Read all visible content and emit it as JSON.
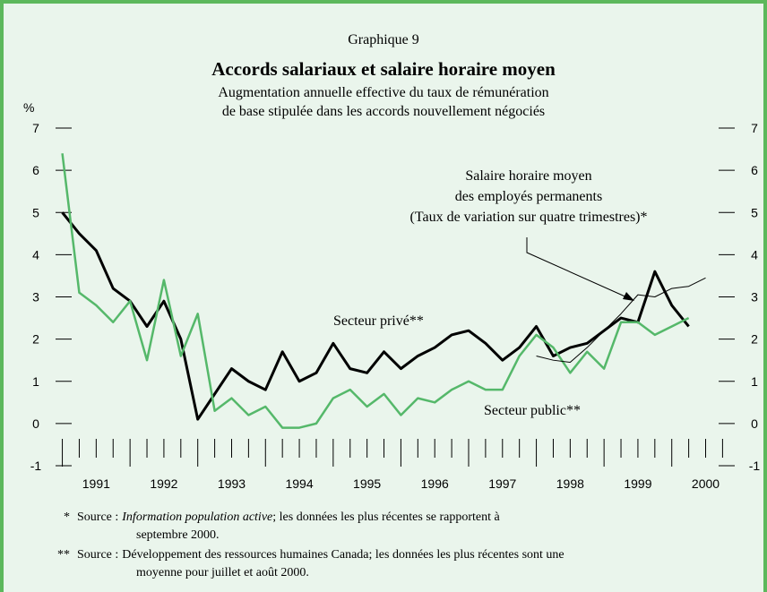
{
  "chart_data": {
    "type": "line",
    "header": "Graphique 9",
    "title": "Accords salariaux et salaire horaire moyen",
    "subtitle": [
      "Augmentation annuelle effective du taux de rémunération",
      "de base stipulée dans les accords nouvellement négociés"
    ],
    "y_label": "%",
    "x": [
      1991,
      1991.25,
      1991.5,
      1991.75,
      1992,
      1992.25,
      1992.5,
      1992.75,
      1993,
      1993.25,
      1993.5,
      1993.75,
      1994,
      1994.25,
      1994.5,
      1994.75,
      1995,
      1995.25,
      1995.5,
      1995.75,
      1996,
      1996.25,
      1996.5,
      1996.75,
      1997,
      1997.25,
      1997.5,
      1997.75,
      1998,
      1998.25,
      1998.5,
      1998.75,
      1999,
      1999.25,
      1999.5,
      1999.75,
      2000,
      2000.25,
      2000.5
    ],
    "series": [
      {
        "name": "Secteur privé**",
        "color": "#000000",
        "width": 3,
        "values": [
          5.0,
          4.5,
          4.1,
          3.2,
          2.9,
          2.3,
          2.9,
          2.0,
          0.1,
          0.7,
          1.3,
          1.0,
          0.8,
          1.7,
          1.0,
          1.2,
          1.9,
          1.3,
          1.2,
          1.7,
          1.3,
          1.6,
          1.8,
          2.1,
          2.2,
          1.9,
          1.5,
          1.8,
          2.3,
          1.6,
          1.8,
          1.9,
          2.2,
          2.5,
          2.4,
          3.6,
          2.8,
          2.3,
          null
        ]
      },
      {
        "name": "Secteur public**",
        "color": "#55b86a",
        "width": 2.5,
        "values": [
          6.4,
          3.1,
          2.8,
          2.4,
          2.9,
          1.5,
          3.4,
          1.6,
          2.6,
          0.3,
          0.6,
          0.2,
          0.4,
          -0.1,
          -0.1,
          0.0,
          0.6,
          0.8,
          0.4,
          0.7,
          0.2,
          0.6,
          0.5,
          0.8,
          1.0,
          0.8,
          0.8,
          1.6,
          2.1,
          1.8,
          1.2,
          1.7,
          1.3,
          2.4,
          2.4,
          2.1,
          2.3,
          2.5,
          null
        ]
      },
      {
        "name": [
          "Salaire horaire moyen",
          "des employés permanents",
          "(Taux de variation sur quatre trimestres)*"
        ],
        "color": "#000000",
        "width": 1,
        "values": [
          null,
          null,
          null,
          null,
          null,
          null,
          null,
          null,
          null,
          null,
          null,
          null,
          null,
          null,
          null,
          null,
          null,
          null,
          null,
          null,
          null,
          null,
          null,
          null,
          null,
          null,
          null,
          null,
          1.6,
          1.5,
          1.45,
          1.8,
          2.2,
          2.6,
          3.05,
          3.0,
          3.2,
          3.25,
          3.45
        ]
      }
    ],
    "xlim": [
      1990.9,
      2000.93
    ],
    "xticks": [
      {
        "value": 1991.5,
        "label": "1991"
      },
      {
        "value": 1992.5,
        "label": "1992"
      },
      {
        "value": 1993.5,
        "label": "1993"
      },
      {
        "value": 1994.5,
        "label": "1994"
      },
      {
        "value": 1995.5,
        "label": "1995"
      },
      {
        "value": 1996.5,
        "label": "1996"
      },
      {
        "value": 1997.5,
        "label": "1997"
      },
      {
        "value": 1998.5,
        "label": "1998"
      },
      {
        "value": 1999.5,
        "label": "1999"
      },
      {
        "value": 2000.5,
        "label": "2000"
      }
    ],
    "ylim": [
      -1,
      7
    ],
    "yticks": [
      -1,
      0,
      1,
      2,
      3,
      4,
      5,
      6,
      7
    ],
    "notes": [
      [
        "*",
        "Source :",
        "Information population active",
        "; les données les plus récentes se rapportent à",
        "septembre 2000."
      ],
      [
        "**",
        "Source :",
        "Développement des ressources humaines Canada; les données les plus récentes sont une",
        "moyenne pour juillet et août 2000."
      ]
    ]
  }
}
